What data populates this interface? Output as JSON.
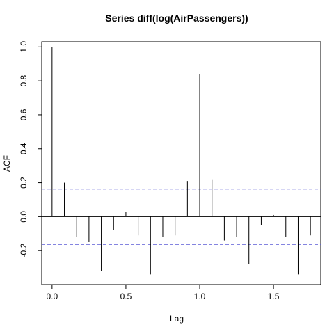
{
  "chart_data": {
    "type": "bar",
    "title": "Series  diff(log(AirPassengers))",
    "xlabel": "Lag",
    "ylabel": "ACF",
    "xlim": [
      -0.07,
      1.82
    ],
    "ylim": [
      -0.4,
      1.03
    ],
    "x_ticks": [
      {
        "value": 0.0,
        "label": "0.0"
      },
      {
        "value": 0.5,
        "label": "0.5"
      },
      {
        "value": 1.0,
        "label": "1.0"
      },
      {
        "value": 1.5,
        "label": "1.5"
      }
    ],
    "y_ticks": [
      {
        "value": -0.2,
        "label": "-0.2"
      },
      {
        "value": 0.0,
        "label": "0.0"
      },
      {
        "value": 0.2,
        "label": "0.2"
      },
      {
        "value": 0.4,
        "label": "0.4"
      },
      {
        "value": 0.6,
        "label": "0.6"
      },
      {
        "value": 0.8,
        "label": "0.8"
      },
      {
        "value": 1.0,
        "label": "1.0"
      }
    ],
    "lags": [
      0.0,
      0.0833,
      0.1667,
      0.25,
      0.3333,
      0.4167,
      0.5,
      0.5833,
      0.6667,
      0.75,
      0.8333,
      0.9167,
      1.0,
      1.0833,
      1.1667,
      1.25,
      1.3333,
      1.4167,
      1.5,
      1.5833,
      1.6667,
      1.75
    ],
    "acf": [
      1.0,
      0.2,
      -0.12,
      -0.15,
      -0.32,
      -0.08,
      0.03,
      -0.11,
      -0.34,
      -0.12,
      -0.11,
      0.21,
      0.84,
      0.22,
      -0.14,
      -0.12,
      -0.28,
      -0.05,
      0.01,
      -0.12,
      -0.34,
      -0.11
    ],
    "confidence_bound": 0.163,
    "bound_color": "#5b5bd6",
    "grid": false
  }
}
